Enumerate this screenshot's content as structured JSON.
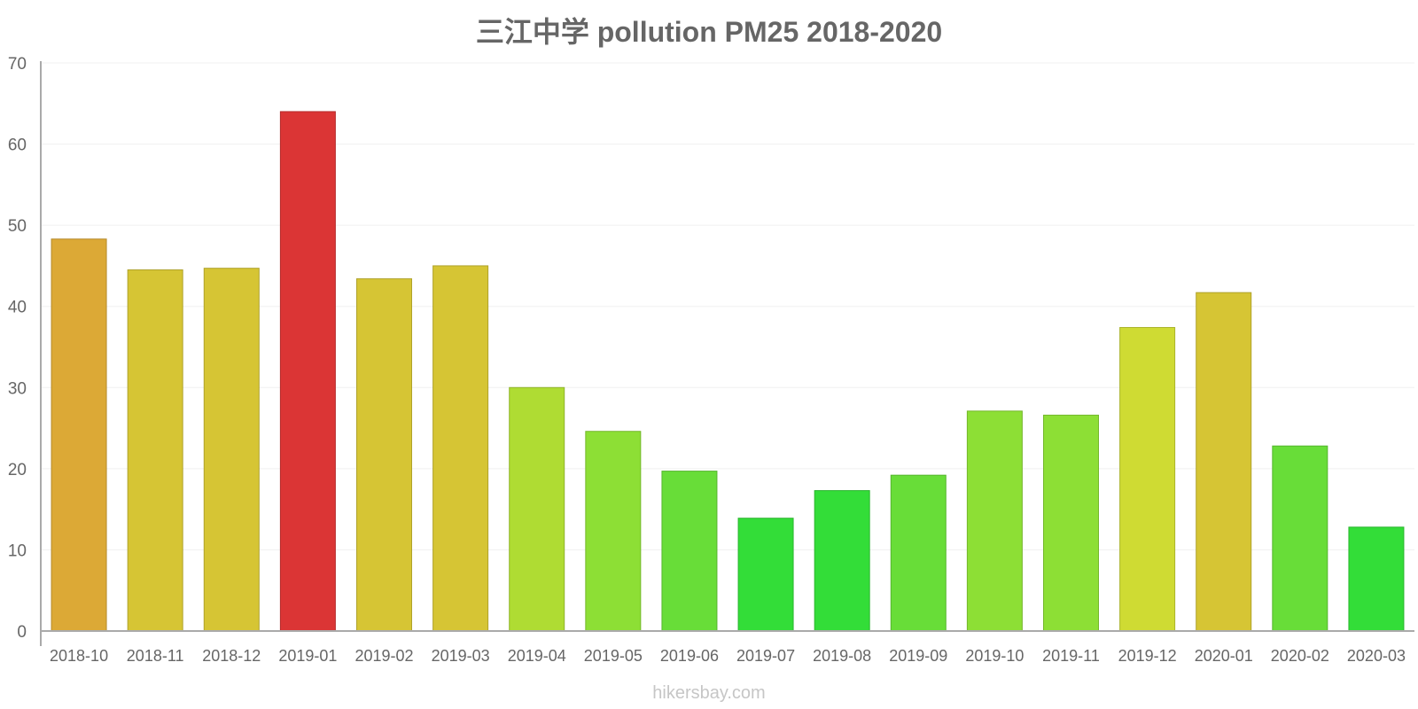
{
  "chart_data": {
    "type": "bar",
    "title": "三江中学 pollution PM25 2018-2020",
    "xlabel": "",
    "ylabel": "",
    "ylim": [
      0,
      70
    ],
    "yticks": [
      0,
      10,
      20,
      30,
      40,
      50,
      60,
      70
    ],
    "grid": true,
    "legend": "none",
    "categories": [
      "2018-10",
      "2018-11",
      "2018-12",
      "2019-01",
      "2019-02",
      "2019-03",
      "2019-04",
      "2019-05",
      "2019-06",
      "2019-07",
      "2019-08",
      "2019-09",
      "2019-10",
      "2019-11",
      "2019-12",
      "2020-01",
      "2020-02",
      "2020-03"
    ],
    "values": [
      48.3,
      44.5,
      44.7,
      64.0,
      43.4,
      45.0,
      30.0,
      24.6,
      19.7,
      13.9,
      17.3,
      19.2,
      27.1,
      26.6,
      37.4,
      41.7,
      22.8,
      12.8
    ],
    "colors": [
      "#dca936",
      "#d6c534",
      "#d6c534",
      "#db3535",
      "#d6c534",
      "#d6c534",
      "#afdc33",
      "#8ddf35",
      "#68dd38",
      "#33dd38",
      "#33dd38",
      "#68dd38",
      "#8ddf35",
      "#8ddf35",
      "#cfdb33",
      "#d6c534",
      "#68dd38",
      "#33dd38"
    ]
  },
  "watermark": "hikersbay.com"
}
